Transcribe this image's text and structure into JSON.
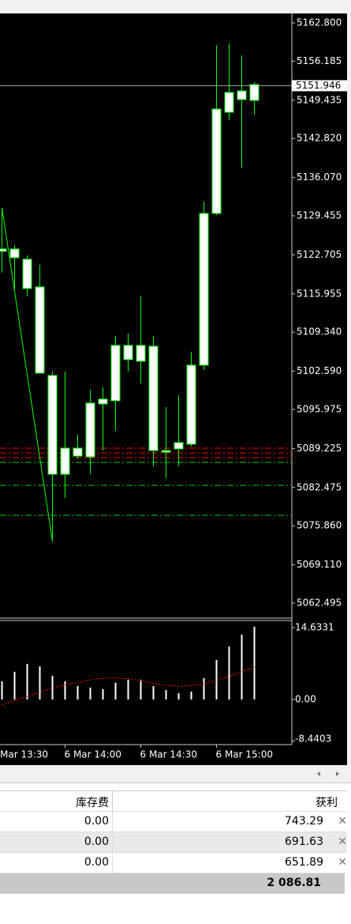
{
  "chart_data": [
    {
      "type": "candlestick",
      "color": "#00ff00",
      "body_color": "#ffffff",
      "open": [
        5123.31,
        5123.72,
        5121.94,
        5117.16,
        5101.85,
        5084.77,
        5089.28,
        5087.78,
        5096.93,
        5097.48,
        5107.05,
        5104.31,
        5106.91,
        5088.87,
        5089.15,
        5089.97,
        5103.63,
        5129.87,
        5147.36,
        5149.55,
        5149.41
      ],
      "high": [
        5130.82,
        5124.4,
        5122.62,
        5120.98,
        5102.54,
        5102.54,
        5091.61,
        5099.39,
        5099.8,
        5108.69,
        5109.1,
        5115.52,
        5108.69,
        5096.39,
        5098.44,
        5105.95,
        5131.92,
        5158.97,
        5159.25,
        5157.2,
        5152.55
      ],
      "low": [
        5119.62,
        5116.89,
        5115.52,
        5102.26,
        5073.16,
        5080.68,
        5087.51,
        5084.77,
        5088.87,
        5092.29,
        5102.54,
        5100.49,
        5086.14,
        5084.09,
        5086.14,
        5089.56,
        5102.81,
        5129.59,
        5145.99,
        5137.79,
        5146.95
      ],
      "close": [
        5123.72,
        5122.21,
        5116.89,
        5102.26,
        5084.77,
        5089.28,
        5087.92,
        5097.07,
        5097.76,
        5107.05,
        5104.59,
        5107.05,
        5088.87,
        5088.6,
        5090.24,
        5103.63,
        5129.87,
        5147.91,
        5150.77,
        5151.05,
        5152.14
      ],
      "ylim": [
        5059.9,
        5164.44
      ],
      "yticks": [
        {
          "value": 5162.8,
          "label": "5162.800"
        },
        {
          "value": 5156.185,
          "label": "5156.185"
        },
        {
          "value": 5149.435,
          "label": "5149.435"
        },
        {
          "value": 5142.82,
          "label": "5142.820"
        },
        {
          "value": 5136.07,
          "label": "5136.070"
        },
        {
          "value": 5129.455,
          "label": "5129.455"
        },
        {
          "value": 5122.705,
          "label": "5122.705"
        },
        {
          "value": 5115.955,
          "label": "5115.955"
        },
        {
          "value": 5109.34,
          "label": "5109.340"
        },
        {
          "value": 5102.59,
          "label": "5102.590"
        },
        {
          "value": 5095.975,
          "label": "5095.975"
        },
        {
          "value": 5089.225,
          "label": "5089.225"
        },
        {
          "value": 5082.475,
          "label": "5082.475"
        },
        {
          "value": 5075.86,
          "label": "5075.860"
        },
        {
          "value": 5069.11,
          "label": "5069.110"
        },
        {
          "value": 5062.495,
          "label": "5062.495"
        }
      ],
      "price_line": 5151.946,
      "levels": [
        {
          "value": 5089.28,
          "color": "#ff0000"
        },
        {
          "value": 5088.46,
          "color": "#ff0000"
        },
        {
          "value": 5087.64,
          "color": "#ff0000"
        },
        {
          "value": 5086.82,
          "color": "#00cc00"
        },
        {
          "value": 5082.86,
          "color": "#00cc00"
        },
        {
          "value": 5077.67,
          "color": "#00cc00"
        }
      ],
      "zigzag": {
        "x": [
          0,
          4
        ],
        "values": [
          5130.82,
          5073.16
        ]
      },
      "xticks": [
        {
          "value": -1,
          "label": "Mar 13:30"
        },
        {
          "value": 5,
          "label": "6 Mar 14:00"
        },
        {
          "value": 11,
          "label": "6 Mar 14:30"
        },
        {
          "value": 17,
          "label": "6 Mar 15:00"
        }
      ]
    },
    {
      "type": "bar",
      "ylim": [
        -9.18,
        16.08
      ],
      "yticks": [
        {
          "value": 14.6331,
          "label": "14.6331"
        },
        {
          "value": 0,
          "label": "0.00"
        },
        {
          "value": -8.4403,
          "label": "-8.4403"
        }
      ],
      "series": [
        {
          "type": "bar",
          "color": "#ffffff",
          "values": [
            3.7,
            5.64,
            7.25,
            6.76,
            4.83,
            3.7,
            2.74,
            2.42,
            2.09,
            3.38,
            4.03,
            4.03,
            2.74,
            1.93,
            1.29,
            1.61,
            4.35,
            8.05,
            10.79,
            13.2,
            14.81
          ]
        },
        {
          "type": "line",
          "color": "#ff0000",
          "values": [
            -1.1,
            -0.2,
            0.6,
            1.5,
            2.3,
            3.0,
            3.5,
            4.0,
            4.3,
            4.4,
            4.2,
            3.8,
            3.3,
            2.9,
            2.7,
            2.8,
            3.2,
            3.9,
            4.7,
            5.6,
            6.6
          ]
        }
      ]
    }
  ],
  "table": {
    "columns": [
      "库存费",
      "获利"
    ],
    "rows": [
      [
        "0.00",
        "743.29"
      ],
      [
        "0.00",
        "691.63"
      ],
      [
        "0.00",
        "651.89"
      ]
    ],
    "total": "2 086.81"
  }
}
